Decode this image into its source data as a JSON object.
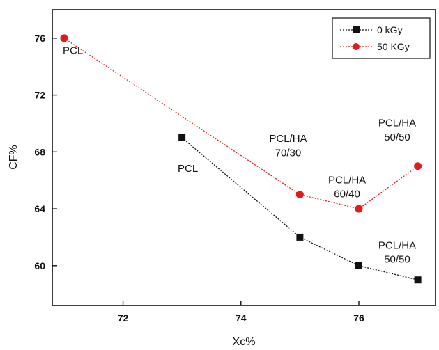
{
  "chart_data": {
    "type": "line",
    "xlabel": "Xc%",
    "ylabel": "CF%",
    "xlim": [
      70.8,
      77.3
    ],
    "ylim": [
      57.2,
      78.0
    ],
    "xticks": [
      72,
      74,
      76
    ],
    "yticks": [
      60,
      64,
      68,
      72,
      76
    ],
    "grid": false,
    "legend_position": "top-right",
    "series": [
      {
        "name": "0 kGy",
        "color": "#111111",
        "marker": "square",
        "x": [
          73,
          75,
          76,
          77
        ],
        "y": [
          69,
          62,
          60,
          59
        ]
      },
      {
        "name": "50 KGy",
        "color": "#e31a1c",
        "marker": "circle",
        "x": [
          71,
          75,
          76,
          77
        ],
        "y": [
          76,
          65,
          64,
          67
        ]
      }
    ],
    "annotations": [
      {
        "lines": [
          "PCL"
        ],
        "x": 71.15,
        "y": 74.9
      },
      {
        "lines": [
          "PCL"
        ],
        "x": 73.1,
        "y": 66.6
      },
      {
        "lines": [
          "PCL/HA",
          "70/30"
        ],
        "x": 74.8,
        "y": 68.7
      },
      {
        "lines": [
          "PCL/HA",
          "60/40"
        ],
        "x": 75.8,
        "y": 65.8
      },
      {
        "lines": [
          "PCL/HA",
          "50/50"
        ],
        "x": 76.65,
        "y": 69.8
      },
      {
        "lines": [
          "PCL/HA",
          "50/50"
        ],
        "x": 76.65,
        "y": 61.2
      }
    ]
  }
}
